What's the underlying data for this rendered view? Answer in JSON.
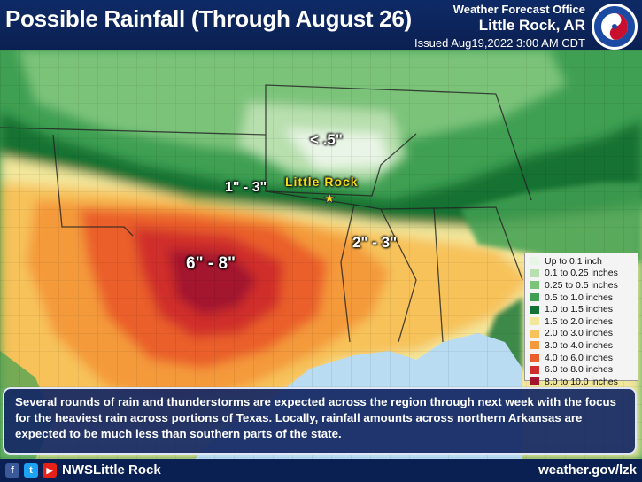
{
  "header": {
    "title": "Possible Rainfall (Through August 26)",
    "office_line": "Weather Forecast Office",
    "office_city": "Little Rock, AR",
    "issued": "Issued Aug19,2022 3:00 AM CDT",
    "logo_text": "NATIONAL WEATHER SERVICE"
  },
  "map": {
    "labels": {
      "north": "< .5\"",
      "center_west": "1\" - 3\"",
      "city": "Little Rock",
      "east": "2\" - 3\"",
      "texas": "6\" - 8\""
    },
    "city_marker": "star-icon"
  },
  "legend": {
    "items": [
      {
        "label": "Up to 0.1 inch",
        "color": "#e9f5e6"
      },
      {
        "label": "0.1 to 0.25 inches",
        "color": "#b8dfae"
      },
      {
        "label": "0.25 to 0.5 inches",
        "color": "#7cc37a"
      },
      {
        "label": "0.5 to 1.0 inches",
        "color": "#3f9f52"
      },
      {
        "label": "1.0 to 1.5 inches",
        "color": "#127233"
      },
      {
        "label": "1.5 to 2.0 inches",
        "color": "#f3e79b"
      },
      {
        "label": "2.0 to 3.0 inches",
        "color": "#f7c25a"
      },
      {
        "label": "3.0 to 4.0 inches",
        "color": "#f49a3a"
      },
      {
        "label": "4.0 to 6.0 inches",
        "color": "#ea5f2c"
      },
      {
        "label": "6.0 to 8.0 inches",
        "color": "#d02e2c"
      },
      {
        "label": "8.0 to 10.0 inches",
        "color": "#a3152e"
      }
    ]
  },
  "note": {
    "text": "Several rounds of rain and thunderstorms are expected across the region through next week with the focus for the heaviest rain across portions of Texas. Locally, rainfall amounts across northern Arkansas are expected to be much less than southern parts of the state."
  },
  "footer": {
    "facebook": "f",
    "twitter": "t",
    "youtube": "▶",
    "handle": "NWSLittle Rock",
    "website": "weather.gov/lzk"
  },
  "colors": {
    "header_bg": "#0e2a66",
    "gulf": "#b9dcf2",
    "light_green": "#b8dfae",
    "yellow": "#f3e79b",
    "orange": "#f49a3a",
    "red": "#d02e2c",
    "dark_red": "#a3152e"
  }
}
